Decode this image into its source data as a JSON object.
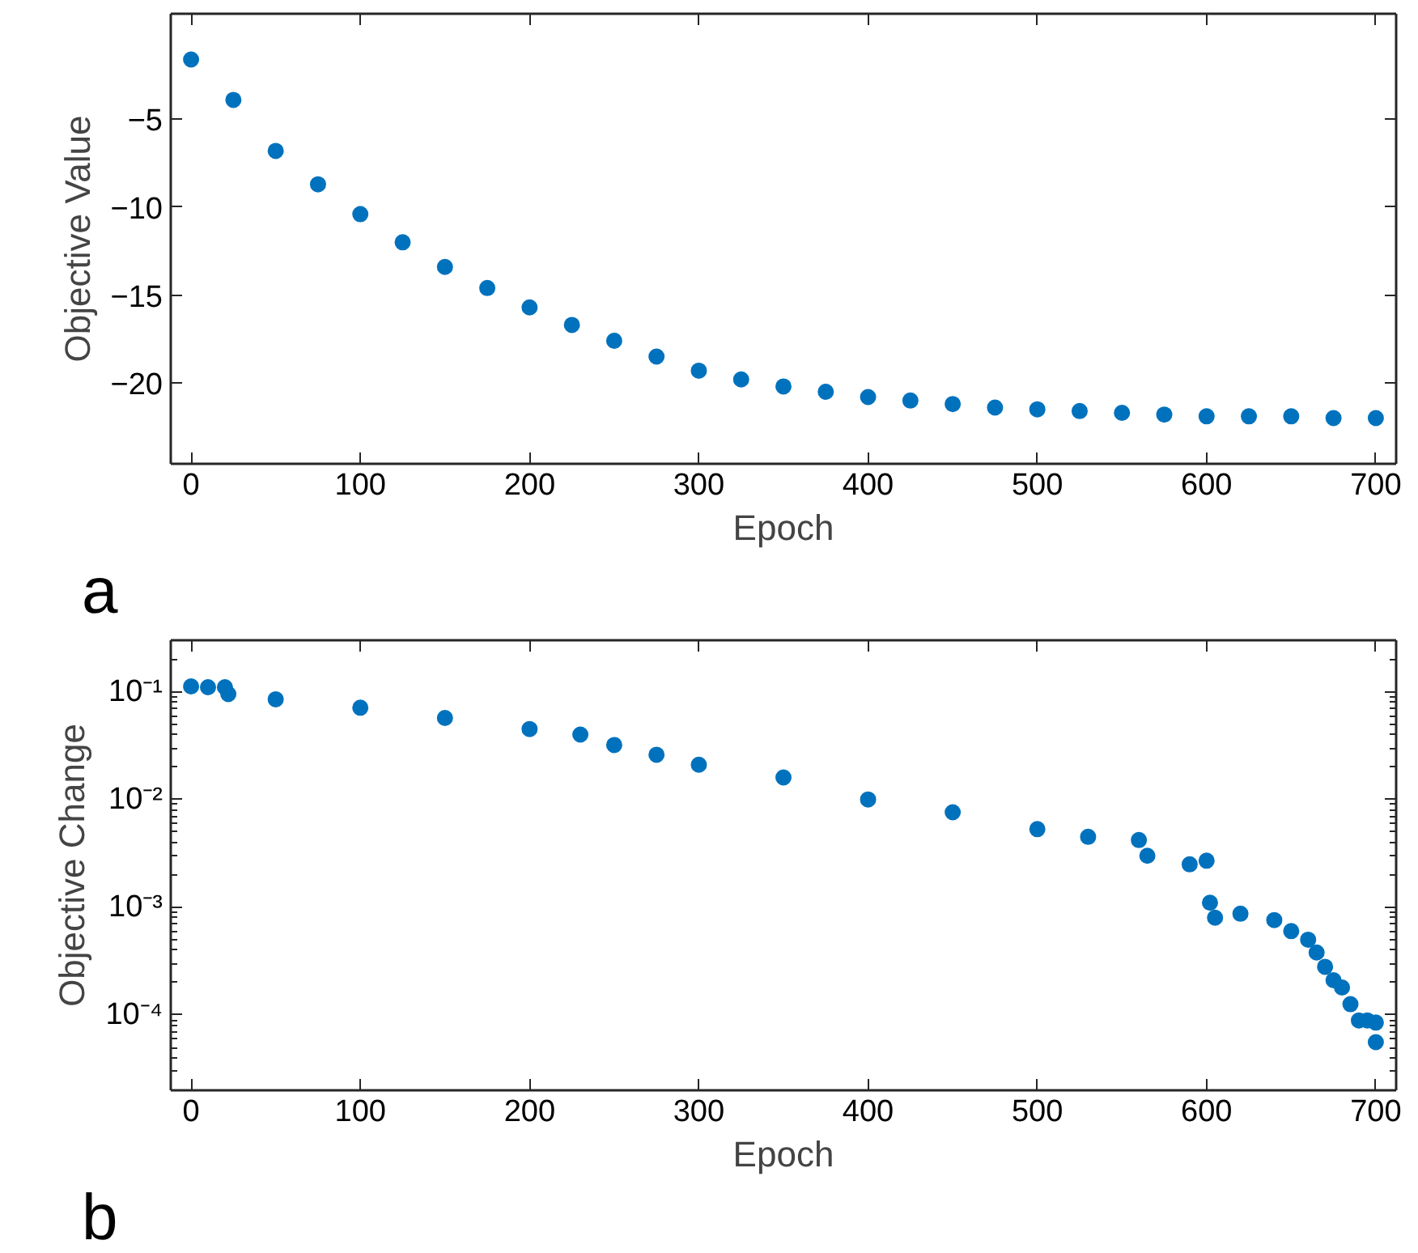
{
  "chart_data": [
    {
      "type": "scatter",
      "xlabel": "Epoch",
      "ylabel": "Objective Value",
      "annotations": [
        "a"
      ],
      "marker": "circle",
      "grid": false,
      "xlim": [
        -12,
        712
      ],
      "ylim": [
        -24.6,
        1
      ],
      "xticks": [
        0,
        100,
        200,
        300,
        400,
        500,
        600,
        700
      ],
      "yticks": [
        -20,
        -15,
        -10,
        -5
      ],
      "x": [
        0,
        25,
        50,
        75,
        100,
        125,
        150,
        175,
        200,
        225,
        250,
        275,
        300,
        325,
        350,
        375,
        400,
        425,
        450,
        475,
        500,
        525,
        550,
        575,
        600,
        625,
        650,
        675,
        700
      ],
      "series": [
        {
          "color": "#0072bd",
          "values": [
            -1.6,
            -3.9,
            -6.8,
            -8.7,
            -10.4,
            -12.0,
            -13.4,
            -14.6,
            -15.7,
            -16.7,
            -17.6,
            -18.5,
            -19.3,
            -19.8,
            -20.2,
            -20.5,
            -20.8,
            -21.0,
            -21.2,
            -21.4,
            -21.5,
            -21.6,
            -21.7,
            -21.8,
            -21.9,
            -21.9,
            -21.9,
            -22.0,
            -22.0
          ]
        }
      ]
    },
    {
      "type": "scatter",
      "xlabel": "Epoch",
      "ylabel": "Objective Change",
      "annotations": [
        "b"
      ],
      "marker": "circle",
      "grid": false,
      "log": "y",
      "xlim": [
        -12,
        712
      ],
      "ylim": [
        2e-05,
        0.3
      ],
      "xticks": [
        0,
        100,
        200,
        300,
        400,
        500,
        600,
        700
      ],
      "yticks": [
        {
          "value": 0.0001,
          "label": "10⁻⁴"
        },
        {
          "value": 0.001,
          "label": "10⁻³"
        },
        {
          "value": 0.01,
          "label": "10⁻²"
        },
        {
          "value": 0.1,
          "label": "10⁻¹"
        }
      ],
      "x": [
        0,
        10,
        20,
        22,
        50,
        100,
        150,
        200,
        230,
        250,
        275,
        300,
        350,
        400,
        450,
        500,
        530,
        560,
        565,
        590,
        600,
        602,
        605,
        620,
        640,
        650,
        660,
        665,
        670,
        675,
        680,
        685,
        690,
        695,
        700,
        700
      ],
      "series": [
        {
          "color": "#0072bd",
          "values": [
            0.112,
            0.11,
            0.11,
            0.095,
            0.085,
            0.071,
            0.057,
            0.045,
            0.04,
            0.032,
            0.026,
            0.021,
            0.016,
            0.01,
            0.0076,
            0.0053,
            0.0045,
            0.0042,
            0.003,
            0.0025,
            0.0027,
            0.0011,
            0.0008,
            0.00087,
            0.00076,
            0.0006,
            0.0005,
            0.00038,
            0.00028,
            0.00021,
            0.00018,
            0.000126,
            8.9e-05,
            8.9e-05,
            8.5e-05,
            5.6e-05
          ]
        }
      ]
    }
  ]
}
